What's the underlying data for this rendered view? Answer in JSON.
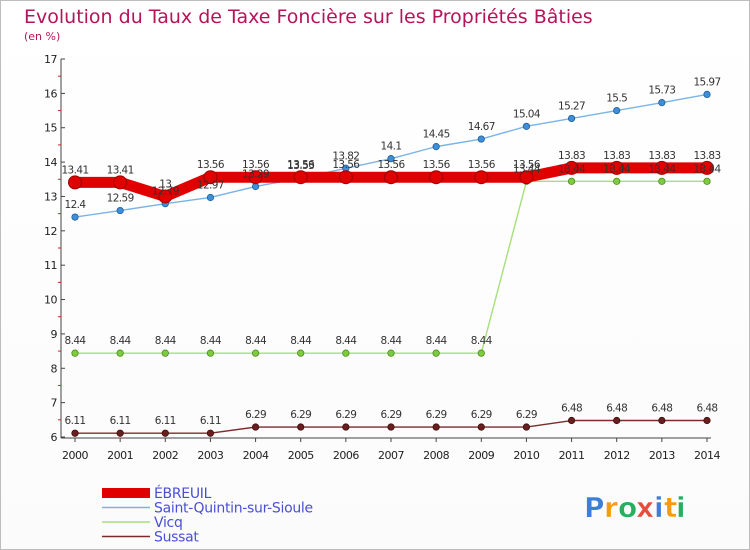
{
  "chart_data": {
    "type": "line",
    "title": "Evolution du Taux de Taxe Foncière sur les Propriétés Bâties",
    "subtitle": "(en %)",
    "xlabel": "",
    "ylabel": "",
    "x": [
      "2000",
      "2001",
      "2002",
      "2003",
      "2004",
      "2005",
      "2006",
      "2007",
      "2008",
      "2009",
      "2010",
      "2011",
      "2012",
      "2013",
      "2014"
    ],
    "ylim": [
      6,
      17
    ],
    "yticks": [
      "6",
      "7",
      "8",
      "9",
      "10",
      "11",
      "12",
      "13",
      "14",
      "15",
      "16",
      "17"
    ],
    "series": [
      {
        "name": "ÉBREUIL",
        "color": "#ff0000",
        "values": [
          13.41,
          13.41,
          13,
          13.56,
          13.56,
          13.56,
          13.56,
          13.56,
          13.56,
          13.56,
          13.56,
          13.83,
          13.83,
          13.83,
          13.83
        ],
        "labels": [
          "13.41",
          "13.41",
          "13",
          "13.56",
          "13.56",
          "13.56",
          "13.56",
          "13.56",
          "13.56",
          "13.56",
          "13.56",
          "13.83",
          "13.83",
          "13.83",
          "13.83"
        ]
      },
      {
        "name": "Saint-Quintin-sur-Sioule",
        "color": "#6fa8dc",
        "values": [
          12.4,
          12.59,
          12.79,
          12.97,
          13.29,
          13.53,
          13.82,
          14.1,
          14.45,
          14.67,
          15.04,
          15.27,
          15.5,
          15.73,
          15.97
        ],
        "labels": [
          "12.4",
          "12.59",
          "12.79",
          "12.97",
          "13.29",
          "13.53",
          "13.82",
          "14.1",
          "14.45",
          "14.67",
          "15.04",
          "15.27",
          "15.5",
          "15.73",
          "15.97"
        ]
      },
      {
        "name": "Vicq",
        "color": "#99dd66",
        "values": [
          8.44,
          8.44,
          8.44,
          8.44,
          8.44,
          8.44,
          8.44,
          8.44,
          8.44,
          8.44,
          13.44,
          13.44,
          13.44,
          13.44,
          13.44
        ],
        "labels": [
          "8.44",
          "8.44",
          "8.44",
          "8.44",
          "8.44",
          "8.44",
          "8.44",
          "8.44",
          "8.44",
          "8.44",
          "13.44",
          "13.44",
          "13.44",
          "13.44",
          "13.44"
        ]
      },
      {
        "name": "Sussat",
        "color": "#7a2a2a",
        "values": [
          6.11,
          6.11,
          6.11,
          6.11,
          6.29,
          6.29,
          6.29,
          6.29,
          6.29,
          6.29,
          6.29,
          6.48,
          6.48,
          6.48,
          6.48
        ],
        "labels": [
          "6.11",
          "6.11",
          "6.11",
          "6.11",
          "6.29",
          "6.29",
          "6.29",
          "6.29",
          "6.29",
          "6.29",
          "6.29",
          "6.48",
          "6.48",
          "6.48",
          "6.48"
        ]
      }
    ],
    "legend_position": "bottom-left",
    "grid": false
  },
  "logo": {
    "text": "Proxiti",
    "letters": [
      "P",
      "r",
      "o",
      "x",
      "i",
      "t",
      "i"
    ]
  }
}
